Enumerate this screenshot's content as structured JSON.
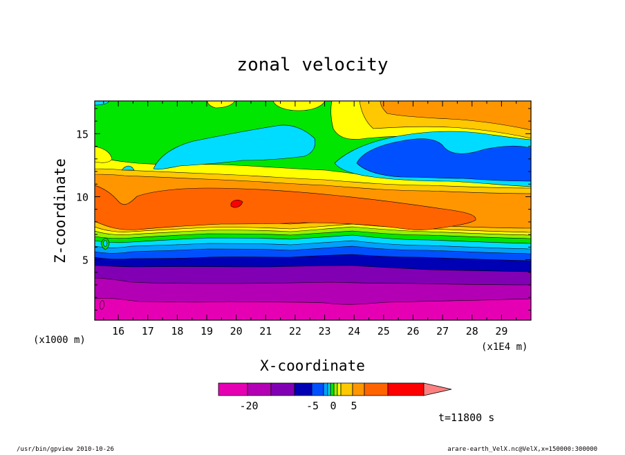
{
  "chart_data": {
    "type": "heatmap",
    "title": "zonal velocity",
    "xlabel": "X-coordinate",
    "ylabel": "Z-coordinate",
    "x_unit_left": "(x1000 m)",
    "x_unit_right": "(x1E4 m)",
    "x_ticks": [
      "16",
      "17",
      "18",
      "19",
      "20",
      "21",
      "22",
      "23",
      "24",
      "25",
      "26",
      "27",
      "28",
      "29"
    ],
    "x_tick_values": [
      16,
      17,
      18,
      19,
      20,
      21,
      22,
      23,
      24,
      25,
      26,
      27,
      28,
      29
    ],
    "xlim": [
      15.2,
      30.0
    ],
    "y_ticks": [
      "5",
      "10",
      "15"
    ],
    "y_tick_values": [
      5,
      10,
      15
    ],
    "ylim": [
      0.2,
      17.6
    ],
    "colorbar": {
      "colors": [
        "#e600b4",
        "#b400b4",
        "#8200b4",
        "#0000b4",
        "#0050ff",
        "#00a0ff",
        "#00dcff",
        "#00e600",
        "#96f000",
        "#ffff00",
        "#ffc800",
        "#ff9600",
        "#ff6400",
        "#ff0000"
      ],
      "upper_extension_color": "#ff8080",
      "tick_labels": [
        "-20",
        "-5",
        "0",
        "5"
      ],
      "tick_values": [
        -20,
        -5,
        0,
        5
      ]
    },
    "time_label": "t=11800 s"
  },
  "footer": {
    "left": "/usr/bin/gpview   2010-10-26",
    "right": "arare-earth_VelX.nc@VelX,x=150000:300000"
  }
}
